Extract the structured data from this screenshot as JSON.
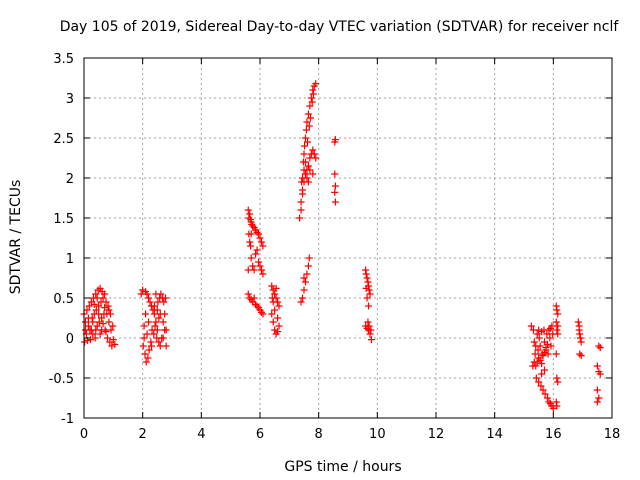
{
  "chart_data": {
    "type": "scatter",
    "title": "Day 105 of 2019, Sidereal Day-to-day VTEC variation (SDTVAR) for receiver nclf",
    "xlabel": "GPS time / hours",
    "ylabel": "SDTVAR / TECUs",
    "xlim": [
      0,
      18
    ],
    "ylim": [
      -1,
      3.5
    ],
    "xticks": [
      0,
      2,
      4,
      6,
      8,
      10,
      12,
      14,
      16,
      18
    ],
    "yticks": [
      -1,
      -0.5,
      0,
      0.5,
      1,
      1.5,
      2,
      2.5,
      3,
      3.5
    ],
    "xtick_labels": [
      "0",
      "2",
      "4",
      "6",
      "8",
      "10",
      "12",
      "14",
      "16",
      "18"
    ],
    "ytick_labels": [
      "-1",
      "-0.5",
      "0",
      "0.5",
      "1",
      "1.5",
      "2",
      "2.5",
      "3",
      "3.5"
    ],
    "grid": true,
    "marker": "plus",
    "color": "#ff0000",
    "series": [
      {
        "name": "SDTVAR",
        "points": [
          [
            0.0,
            0.3
          ],
          [
            0.02,
            -0.05
          ],
          [
            0.05,
            0.2
          ],
          [
            0.08,
            0.05
          ],
          [
            0.1,
            0.35
          ],
          [
            0.12,
            -0.03
          ],
          [
            0.15,
            0.15
          ],
          [
            0.18,
            0.4
          ],
          [
            0.2,
            0.1
          ],
          [
            0.22,
            -0.02
          ],
          [
            0.25,
            0.45
          ],
          [
            0.28,
            0.25
          ],
          [
            0.3,
            0.05
          ],
          [
            0.32,
            0.5
          ],
          [
            0.35,
            0.3
          ],
          [
            0.38,
            0.0
          ],
          [
            0.4,
            0.55
          ],
          [
            0.42,
            0.35
          ],
          [
            0.45,
            0.15
          ],
          [
            0.48,
            0.6
          ],
          [
            0.5,
            0.4
          ],
          [
            0.52,
            0.2
          ],
          [
            0.55,
            0.62
          ],
          [
            0.58,
            0.45
          ],
          [
            0.6,
            0.25
          ],
          [
            0.62,
            0.58
          ],
          [
            0.65,
            0.5
          ],
          [
            0.68,
            0.3
          ],
          [
            0.7,
            0.55
          ],
          [
            0.72,
            0.1
          ],
          [
            0.75,
            0.45
          ],
          [
            0.78,
            0.3
          ],
          [
            0.8,
            0.0
          ],
          [
            0.82,
            0.4
          ],
          [
            0.85,
            0.2
          ],
          [
            0.88,
            -0.05
          ],
          [
            0.9,
            0.3
          ],
          [
            0.92,
            0.1
          ],
          [
            0.95,
            -0.1
          ],
          [
            0.98,
            0.15
          ],
          [
            1.0,
            -0.02
          ],
          [
            1.05,
            -0.08
          ],
          [
            0.3,
            0.2
          ],
          [
            0.4,
            0.1
          ],
          [
            0.5,
            0.3
          ],
          [
            0.6,
            0.1
          ],
          [
            0.35,
            0.42
          ],
          [
            0.45,
            0.5
          ],
          [
            0.55,
            0.05
          ],
          [
            0.65,
            0.18
          ],
          [
            0.75,
            0.08
          ],
          [
            0.25,
            0.1
          ],
          [
            0.15,
            0.25
          ],
          [
            0.05,
            0.1
          ],
          [
            0.7,
            0.38
          ],
          [
            0.85,
            0.35
          ],
          [
            1.95,
            0.55
          ],
          [
            2.0,
            0.6
          ],
          [
            2.02,
            -0.1
          ],
          [
            2.05,
            0.0
          ],
          [
            2.08,
            -0.2
          ],
          [
            2.1,
            0.58
          ],
          [
            2.12,
            -0.3
          ],
          [
            2.15,
            0.55
          ],
          [
            2.18,
            -0.25
          ],
          [
            2.2,
            0.5
          ],
          [
            2.22,
            -0.15
          ],
          [
            2.25,
            0.45
          ],
          [
            2.28,
            -0.05
          ],
          [
            2.3,
            0.4
          ],
          [
            2.32,
            0.1
          ],
          [
            2.35,
            0.35
          ],
          [
            2.38,
            0.05
          ],
          [
            2.4,
            0.3
          ],
          [
            2.42,
            0.15
          ],
          [
            2.45,
            0.2
          ],
          [
            2.48,
            0.0
          ],
          [
            2.5,
            0.1
          ],
          [
            2.52,
            0.45
          ],
          [
            2.55,
            -0.05
          ],
          [
            2.58,
            0.5
          ],
          [
            2.6,
            -0.1
          ],
          [
            2.62,
            0.55
          ],
          [
            2.65,
            0.0
          ],
          [
            2.68,
            0.5
          ],
          [
            2.7,
            0.2
          ],
          [
            2.72,
            0.45
          ],
          [
            2.75,
            0.3
          ],
          [
            2.78,
            0.5
          ],
          [
            2.8,
            0.1
          ],
          [
            2.8,
            -0.1
          ],
          [
            2.05,
            0.15
          ],
          [
            2.1,
            0.3
          ],
          [
            2.15,
            0.05
          ],
          [
            2.2,
            0.2
          ],
          [
            2.3,
            -0.1
          ],
          [
            2.4,
            0.4
          ],
          [
            2.5,
            0.35
          ],
          [
            2.6,
            0.3
          ],
          [
            2.7,
            0.0
          ],
          [
            2.75,
            0.1
          ],
          [
            2.45,
            0.55
          ],
          [
            2.55,
            0.25
          ],
          [
            5.6,
            1.6
          ],
          [
            5.62,
            1.5
          ],
          [
            5.65,
            1.55
          ],
          [
            5.68,
            1.48
          ],
          [
            5.7,
            1.45
          ],
          [
            5.72,
            1.42
          ],
          [
            5.75,
            1.4
          ],
          [
            5.8,
            1.38
          ],
          [
            5.85,
            1.35
          ],
          [
            5.9,
            1.32
          ],
          [
            5.95,
            1.3
          ],
          [
            6.0,
            1.25
          ],
          [
            6.05,
            1.2
          ],
          [
            6.1,
            1.15
          ],
          [
            5.65,
            1.2
          ],
          [
            5.7,
            1.0
          ],
          [
            5.75,
            0.9
          ],
          [
            5.8,
            0.85
          ],
          [
            5.85,
            1.05
          ],
          [
            5.9,
            1.1
          ],
          [
            5.95,
            0.95
          ],
          [
            6.0,
            0.9
          ],
          [
            6.05,
            0.85
          ],
          [
            6.1,
            0.8
          ],
          [
            5.6,
            0.85
          ],
          [
            5.7,
            1.3
          ],
          [
            5.65,
            0.5
          ],
          [
            5.7,
            0.48
          ],
          [
            5.75,
            0.45
          ],
          [
            5.8,
            0.5
          ],
          [
            5.85,
            0.42
          ],
          [
            5.9,
            0.4
          ],
          [
            5.95,
            0.38
          ],
          [
            6.0,
            0.35
          ],
          [
            6.05,
            0.32
          ],
          [
            6.1,
            0.3
          ],
          [
            5.6,
            0.55
          ],
          [
            5.62,
            1.3
          ],
          [
            5.68,
            1.15
          ],
          [
            6.4,
            0.65
          ],
          [
            6.45,
            0.6
          ],
          [
            6.5,
            0.55
          ],
          [
            6.55,
            0.5
          ],
          [
            6.6,
            0.45
          ],
          [
            6.65,
            0.4
          ],
          [
            6.4,
            0.3
          ],
          [
            6.45,
            0.2
          ],
          [
            6.5,
            0.1
          ],
          [
            6.55,
            0.05
          ],
          [
            6.6,
            0.25
          ],
          [
            6.65,
            0.15
          ],
          [
            6.5,
            0.35
          ],
          [
            6.45,
            0.45
          ],
          [
            6.55,
            0.62
          ],
          [
            6.6,
            0.08
          ],
          [
            6.42,
            0.5
          ],
          [
            7.35,
            1.5
          ],
          [
            7.4,
            1.6
          ],
          [
            7.42,
            1.95
          ],
          [
            7.45,
            2.0
          ],
          [
            7.48,
            2.2
          ],
          [
            7.5,
            2.3
          ],
          [
            7.52,
            2.4
          ],
          [
            7.55,
            2.5
          ],
          [
            7.58,
            2.6
          ],
          [
            7.6,
            2.7
          ],
          [
            7.65,
            2.8
          ],
          [
            7.7,
            2.9
          ],
          [
            7.75,
            3.0
          ],
          [
            7.8,
            3.1
          ],
          [
            7.85,
            3.15
          ],
          [
            7.9,
            3.18
          ],
          [
            7.4,
            1.7
          ],
          [
            7.45,
            1.85
          ],
          [
            7.5,
            1.95
          ],
          [
            7.55,
            2.05
          ],
          [
            7.6,
            2.1
          ],
          [
            7.65,
            2.15
          ],
          [
            7.7,
            2.25
          ],
          [
            7.75,
            2.3
          ],
          [
            7.8,
            2.35
          ],
          [
            7.85,
            2.3
          ],
          [
            7.9,
            2.25
          ],
          [
            7.55,
            2.2
          ],
          [
            7.6,
            2.0
          ],
          [
            7.65,
            1.95
          ],
          [
            7.5,
            2.1
          ],
          [
            7.45,
            1.8
          ],
          [
            7.7,
            2.1
          ],
          [
            7.8,
            2.05
          ],
          [
            7.62,
            2.45
          ],
          [
            7.68,
            2.65
          ],
          [
            7.72,
            2.75
          ],
          [
            7.78,
            2.95
          ],
          [
            7.82,
            3.05
          ],
          [
            7.4,
            0.45
          ],
          [
            7.45,
            0.5
          ],
          [
            7.5,
            0.6
          ],
          [
            7.55,
            0.7
          ],
          [
            7.6,
            0.8
          ],
          [
            7.65,
            0.9
          ],
          [
            7.68,
            1.0
          ],
          [
            7.5,
            0.75
          ],
          [
            8.55,
            2.45
          ],
          [
            8.57,
            2.48
          ],
          [
            8.55,
            2.05
          ],
          [
            8.57,
            1.9
          ],
          [
            8.55,
            1.82
          ],
          [
            8.57,
            1.7
          ],
          [
            9.6,
            0.85
          ],
          [
            9.62,
            0.8
          ],
          [
            9.65,
            0.75
          ],
          [
            9.68,
            0.7
          ],
          [
            9.7,
            0.65
          ],
          [
            9.72,
            0.6
          ],
          [
            9.75,
            0.55
          ],
          [
            9.65,
            0.5
          ],
          [
            9.7,
            0.4
          ],
          [
            9.6,
            0.15
          ],
          [
            9.65,
            0.12
          ],
          [
            9.7,
            0.1
          ],
          [
            9.75,
            0.05
          ],
          [
            9.8,
            -0.02
          ],
          [
            9.68,
            0.2
          ],
          [
            9.72,
            0.15
          ],
          [
            9.62,
            0.62
          ],
          [
            9.78,
            0.1
          ],
          [
            15.3,
            -0.35
          ],
          [
            15.32,
            0.1
          ],
          [
            15.35,
            -0.3
          ],
          [
            15.38,
            -0.2
          ],
          [
            15.4,
            -0.1
          ],
          [
            15.42,
            -0.5
          ],
          [
            15.45,
            0.05
          ],
          [
            15.48,
            -0.15
          ],
          [
            15.5,
            -0.55
          ],
          [
            15.52,
            0.0
          ],
          [
            15.55,
            -0.1
          ],
          [
            15.58,
            -0.6
          ],
          [
            15.6,
            0.08
          ],
          [
            15.62,
            -0.2
          ],
          [
            15.65,
            -0.65
          ],
          [
            15.68,
            0.1
          ],
          [
            15.7,
            -0.05
          ],
          [
            15.72,
            -0.7
          ],
          [
            15.75,
            -0.15
          ],
          [
            15.78,
            0.05
          ],
          [
            15.8,
            -0.75
          ],
          [
            15.82,
            -0.2
          ],
          [
            15.85,
            -0.8
          ],
          [
            15.88,
            0.0
          ],
          [
            15.9,
            -0.82
          ],
          [
            15.92,
            -0.1
          ],
          [
            15.95,
            -0.85
          ],
          [
            15.98,
            0.05
          ],
          [
            16.0,
            -0.88
          ],
          [
            15.4,
            -0.35
          ],
          [
            15.45,
            -0.3
          ],
          [
            15.5,
            -0.25
          ],
          [
            15.55,
            -0.28
          ],
          [
            15.6,
            -0.32
          ],
          [
            15.65,
            -0.22
          ],
          [
            15.7,
            -0.18
          ],
          [
            15.75,
            -0.12
          ],
          [
            15.8,
            -0.08
          ],
          [
            15.85,
            0.1
          ],
          [
            15.9,
            0.12
          ],
          [
            15.95,
            0.15
          ],
          [
            15.5,
            0.1
          ],
          [
            15.6,
            -0.45
          ],
          [
            15.7,
            -0.4
          ],
          [
            15.25,
            0.15
          ],
          [
            15.35,
            -0.05
          ],
          [
            16.1,
            0.4
          ],
          [
            16.12,
            0.35
          ],
          [
            16.15,
            0.3
          ],
          [
            16.1,
            0.2
          ],
          [
            16.12,
            0.1
          ],
          [
            16.15,
            0.05
          ],
          [
            16.1,
            -0.2
          ],
          [
            16.12,
            -0.5
          ],
          [
            16.15,
            -0.55
          ],
          [
            16.1,
            -0.8
          ],
          [
            16.12,
            -0.85
          ],
          [
            16.15,
            0.15
          ],
          [
            16.85,
            0.2
          ],
          [
            16.88,
            0.1
          ],
          [
            16.9,
            0.05
          ],
          [
            16.92,
            0.0
          ],
          [
            16.95,
            -0.05
          ],
          [
            16.9,
            -0.2
          ],
          [
            16.95,
            -0.22
          ],
          [
            16.88,
            0.15
          ],
          [
            17.55,
            -0.1
          ],
          [
            17.6,
            -0.12
          ],
          [
            17.5,
            -0.35
          ],
          [
            17.55,
            -0.42
          ],
          [
            17.6,
            -0.45
          ],
          [
            17.5,
            -0.65
          ],
          [
            17.55,
            -0.75
          ],
          [
            17.5,
            -0.8
          ]
        ]
      }
    ]
  }
}
